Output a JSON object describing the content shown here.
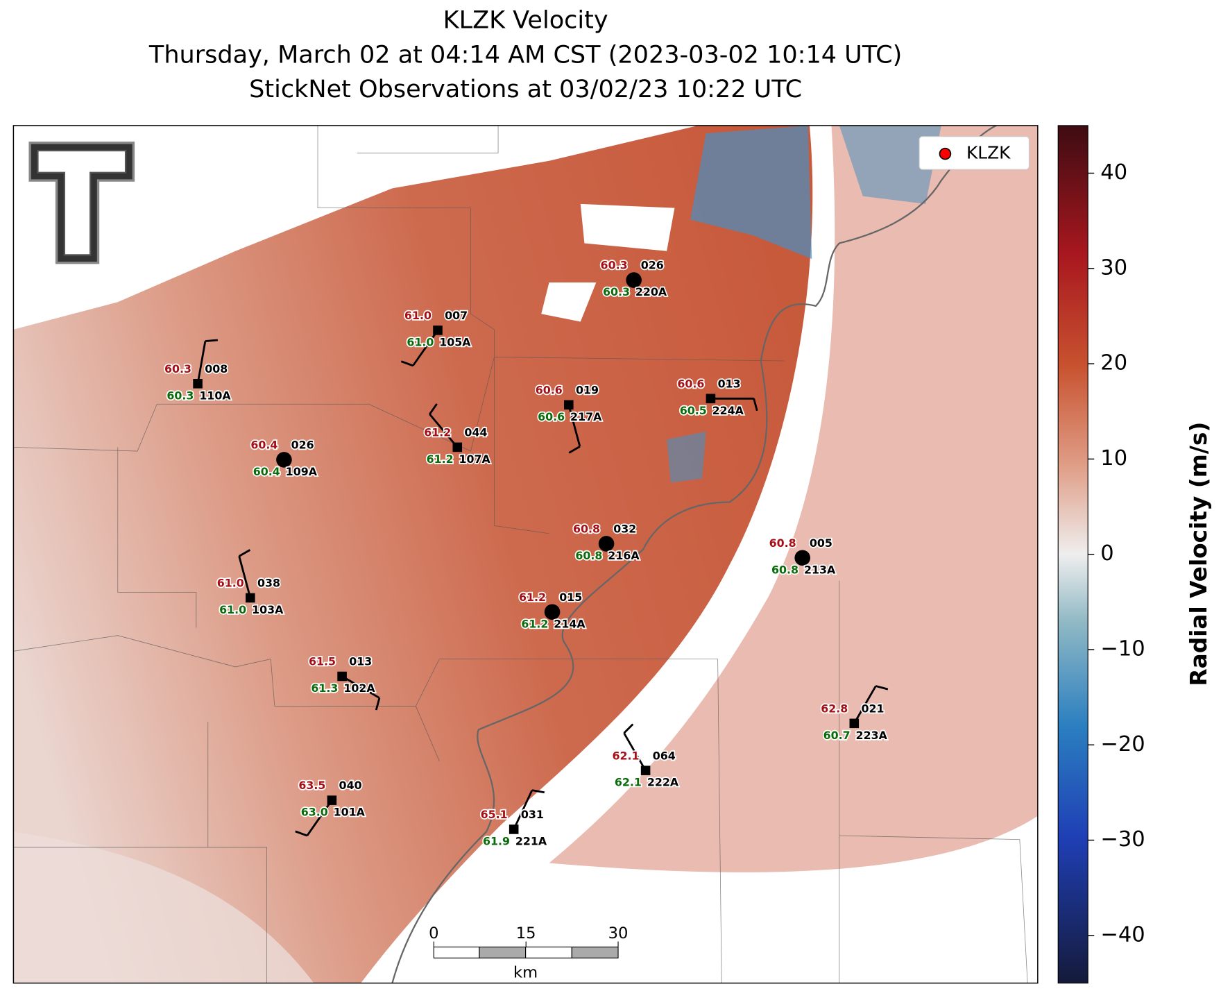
{
  "title": [
    "KLZK Velocity",
    "Thursday, March 02 at 04:14 AM CST (2023-03-02 10:14 UTC)",
    "StickNet Observations at 03/02/23 10:22 UTC"
  ],
  "legend": {
    "label": "KLZK",
    "color": "#ff0000"
  },
  "colorbar": {
    "label": "Radial Velocity (m/s)",
    "limits": [
      -45,
      45
    ],
    "ticks": [
      {
        "value": -40,
        "label": "−40"
      },
      {
        "value": -30,
        "label": "−30"
      },
      {
        "value": -20,
        "label": "−20"
      },
      {
        "value": -10,
        "label": "−10"
      },
      0,
      10,
      20,
      30,
      40
    ]
  },
  "scale_bar": {
    "ticks": [
      0,
      15,
      30
    ],
    "unit": "km"
  },
  "stations": [
    {
      "id": "220A",
      "code": "026",
      "temp": "60.3",
      "dew": "60.3"
    },
    {
      "id": "105A",
      "code": "007",
      "temp": "61.0",
      "dew": "61.0"
    },
    {
      "id": "110A",
      "code": "008",
      "temp": "60.3",
      "dew": "60.3"
    },
    {
      "id": "217A",
      "code": "019",
      "temp": "60.6",
      "dew": "60.6"
    },
    {
      "id": "224A",
      "code": "013",
      "temp": "60.6",
      "dew": "60.5"
    },
    {
      "id": "109A",
      "code": "026",
      "temp": "60.4",
      "dew": "60.4"
    },
    {
      "id": "107A",
      "code": "044",
      "temp": "61.2",
      "dew": "61.2"
    },
    {
      "id": "216A",
      "code": "032",
      "temp": "60.8",
      "dew": "60.8"
    },
    {
      "id": "213A",
      "code": "005",
      "temp": "60.8",
      "dew": "60.8"
    },
    {
      "id": "103A",
      "code": "038",
      "temp": "61.0",
      "dew": "61.0"
    },
    {
      "id": "214A",
      "code": "015",
      "temp": "61.2",
      "dew": "61.2"
    },
    {
      "id": "102A",
      "code": "013",
      "temp": "61.5",
      "dew": "61.3"
    },
    {
      "id": "223A",
      "code": "021",
      "temp": "62.8",
      "dew": "60.7"
    },
    {
      "id": "222A",
      "code": "064",
      "temp": "62.1",
      "dew": "62.1"
    },
    {
      "id": "101A",
      "code": "040",
      "temp": "63.5",
      "dew": "63.0"
    },
    {
      "id": "221A",
      "code": "031",
      "temp": "65.1",
      "dew": "61.9"
    }
  ]
}
